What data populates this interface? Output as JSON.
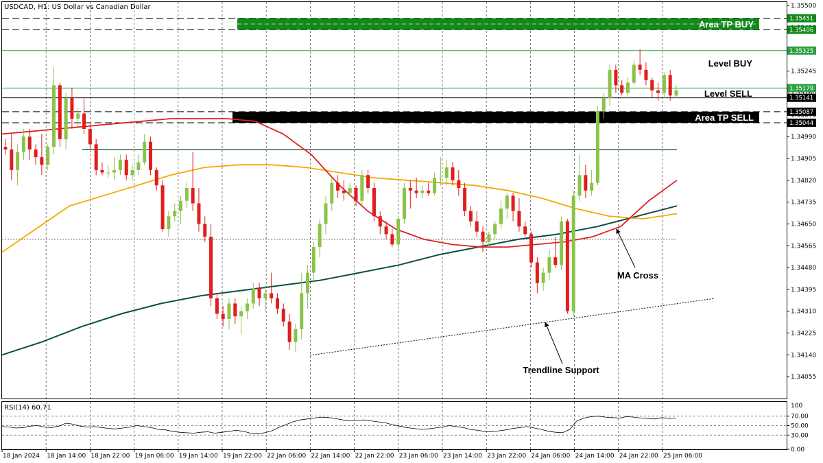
{
  "chart_title": "USDCAD, H1:  US Dollar vs Canadian Dollar",
  "rsi_label": "RSI(14) 60.71",
  "colors": {
    "bull": "#8bc34a",
    "bear": "#e11d1d",
    "ma_red": "#e0201e",
    "ma_orange": "#f5a800",
    "ma_dark": "#0b4f44",
    "green_zone": "#13891b",
    "level_green": "#2ea043",
    "grid": "#777777"
  },
  "chart_data": {
    "type": "candlestick",
    "symbol": "USDCAD",
    "timeframe": "H1",
    "ylim": [
      1.3397,
      1.35514
    ],
    "y_ticks": [
      "1.35500",
      "1.35415",
      "1.35330",
      "1.35245",
      "1.35160",
      "1.35075",
      "1.34990",
      "1.34905",
      "1.34820",
      "1.34735",
      "1.34650",
      "1.34565",
      "1.34480",
      "1.34395",
      "1.34310",
      "1.34225",
      "1.34140",
      "1.34055"
    ],
    "x_labels": [
      "18 Jan 2024",
      "18 Jan 14:00",
      "18 Jan 22:00",
      "19 Jan 06:00",
      "19 Jan 14:00",
      "19 Jan 22:00",
      "22 Jan 06:00",
      "22 Jan 14:00",
      "22 Jan 22:00",
      "23 Jan 06:00",
      "23 Jan 14:00",
      "23 Jan 22:00",
      "24 Jan 06:00",
      "24 Jan 14:00",
      "24 Jan 22:00",
      "25 Jan 06:00"
    ],
    "candles": [
      [
        1.3495,
        1.3498,
        1.3492,
        1.3494
      ],
      [
        1.3494,
        1.35,
        1.3482,
        1.3486
      ],
      [
        1.3486,
        1.3496,
        1.348,
        1.3493
      ],
      [
        1.3493,
        1.3502,
        1.349,
        1.3499
      ],
      [
        1.3499,
        1.3502,
        1.349,
        1.3494
      ],
      [
        1.3494,
        1.3496,
        1.3488,
        1.3491
      ],
      [
        1.3491,
        1.35,
        1.3484,
        1.3488
      ],
      [
        1.3488,
        1.3496,
        1.3486,
        1.3495
      ],
      [
        1.3495,
        1.3526,
        1.3492,
        1.3519
      ],
      [
        1.3519,
        1.352,
        1.3495,
        1.3498
      ],
      [
        1.3498,
        1.3516,
        1.3494,
        1.3514
      ],
      [
        1.3514,
        1.3518,
        1.3502,
        1.3506
      ],
      [
        1.3506,
        1.351,
        1.3503,
        1.3508
      ],
      [
        1.3508,
        1.3514,
        1.35,
        1.3502
      ],
      [
        1.3502,
        1.3504,
        1.3494,
        1.3496
      ],
      [
        1.3496,
        1.3498,
        1.3484,
        1.3486
      ],
      [
        1.3486,
        1.3489,
        1.3484,
        1.3485
      ],
      [
        1.3485,
        1.3488,
        1.3483,
        1.3485
      ],
      [
        1.3485,
        1.3491,
        1.3482,
        1.3486
      ],
      [
        1.3486,
        1.3492,
        1.3484,
        1.349
      ],
      [
        1.349,
        1.3492,
        1.3482,
        1.3484
      ],
      [
        1.3484,
        1.3488,
        1.3482,
        1.3486
      ],
      [
        1.3486,
        1.3492,
        1.3484,
        1.3489
      ],
      [
        1.3489,
        1.35,
        1.3488,
        1.3497
      ],
      [
        1.3497,
        1.3499,
        1.3484,
        1.3486
      ],
      [
        1.3486,
        1.3487,
        1.3478,
        1.348
      ],
      [
        1.348,
        1.3482,
        1.3462,
        1.3463
      ],
      [
        1.3463,
        1.347,
        1.346,
        1.3468
      ],
      [
        1.3468,
        1.3473,
        1.3466,
        1.347
      ],
      [
        1.347,
        1.3476,
        1.3465,
        1.3474
      ],
      [
        1.3474,
        1.3481,
        1.3471,
        1.3479
      ],
      [
        1.3479,
        1.3493,
        1.347,
        1.3473
      ],
      [
        1.3473,
        1.3479,
        1.3462,
        1.3465
      ],
      [
        1.3465,
        1.3468,
        1.3458,
        1.346
      ],
      [
        1.346,
        1.3465,
        1.3433,
        1.3436
      ],
      [
        1.3436,
        1.3438,
        1.3428,
        1.343
      ],
      [
        1.343,
        1.3433,
        1.3425,
        1.3428
      ],
      [
        1.3428,
        1.3436,
        1.3424,
        1.3434
      ],
      [
        1.3434,
        1.3436,
        1.3426,
        1.3429
      ],
      [
        1.3429,
        1.3433,
        1.3422,
        1.3431
      ],
      [
        1.3431,
        1.3436,
        1.3428,
        1.3434
      ],
      [
        1.3434,
        1.3442,
        1.3432,
        1.344
      ],
      [
        1.344,
        1.3442,
        1.3433,
        1.3436
      ],
      [
        1.3436,
        1.3441,
        1.3431,
        1.3438
      ],
      [
        1.3438,
        1.3446,
        1.3434,
        1.3436
      ],
      [
        1.3436,
        1.3438,
        1.343,
        1.3432
      ],
      [
        1.3432,
        1.3434,
        1.3425,
        1.3427
      ],
      [
        1.3427,
        1.343,
        1.3416,
        1.3419
      ],
      [
        1.3419,
        1.3426,
        1.3415,
        1.3424
      ],
      [
        1.3424,
        1.3446,
        1.342,
        1.3438
      ],
      [
        1.3438,
        1.3449,
        1.3432,
        1.3446
      ],
      [
        1.3446,
        1.3458,
        1.3442,
        1.3456
      ],
      [
        1.3456,
        1.3467,
        1.3452,
        1.3465
      ],
      [
        1.3465,
        1.3476,
        1.3461,
        1.3473
      ],
      [
        1.3473,
        1.3483,
        1.347,
        1.3481
      ],
      [
        1.3481,
        1.3484,
        1.3475,
        1.3478
      ],
      [
        1.3478,
        1.3482,
        1.3474,
        1.3477
      ],
      [
        1.3477,
        1.3481,
        1.3476,
        1.3479
      ],
      [
        1.3479,
        1.348,
        1.3472,
        1.3474
      ],
      [
        1.3474,
        1.3486,
        1.3472,
        1.3484
      ],
      [
        1.3484,
        1.3486,
        1.3477,
        1.3479
      ],
      [
        1.3479,
        1.3481,
        1.3466,
        1.3468
      ],
      [
        1.3468,
        1.347,
        1.3461,
        1.3464
      ],
      [
        1.3464,
        1.3466,
        1.3459,
        1.3461
      ],
      [
        1.3461,
        1.3463,
        1.3456,
        1.3457
      ],
      [
        1.3457,
        1.3468,
        1.3455,
        1.3467
      ],
      [
        1.3467,
        1.3481,
        1.3465,
        1.3479
      ],
      [
        1.3479,
        1.3482,
        1.3471,
        1.3478
      ],
      [
        1.3478,
        1.3483,
        1.3475,
        1.3477
      ],
      [
        1.3477,
        1.348,
        1.3475,
        1.3478
      ],
      [
        1.3478,
        1.3481,
        1.3476,
        1.3477
      ],
      [
        1.3477,
        1.3485,
        1.3476,
        1.3483
      ],
      [
        1.3483,
        1.3491,
        1.348,
        1.3483
      ],
      [
        1.3483,
        1.349,
        1.348,
        1.3487
      ],
      [
        1.3487,
        1.3489,
        1.348,
        1.3482
      ],
      [
        1.3482,
        1.3486,
        1.3476,
        1.3479
      ],
      [
        1.3479,
        1.3481,
        1.3468,
        1.347
      ],
      [
        1.347,
        1.3472,
        1.3464,
        1.3466
      ],
      [
        1.3466,
        1.347,
        1.346,
        1.3462
      ],
      [
        1.3462,
        1.3464,
        1.3454,
        1.3458
      ],
      [
        1.3458,
        1.3462,
        1.3456,
        1.3461
      ],
      [
        1.3461,
        1.3466,
        1.3459,
        1.3465
      ],
      [
        1.3465,
        1.3474,
        1.3463,
        1.3471
      ],
      [
        1.3471,
        1.3477,
        1.3467,
        1.3476
      ],
      [
        1.3476,
        1.3477,
        1.3466,
        1.347
      ],
      [
        1.347,
        1.3475,
        1.3462,
        1.3464
      ],
      [
        1.3464,
        1.3466,
        1.346,
        1.3461
      ],
      [
        1.3461,
        1.3462,
        1.3448,
        1.345
      ],
      [
        1.345,
        1.3452,
        1.3438,
        1.3442
      ],
      [
        1.3442,
        1.3448,
        1.3439,
        1.3446
      ],
      [
        1.3446,
        1.3455,
        1.3443,
        1.3452
      ],
      [
        1.3452,
        1.346,
        1.3448,
        1.3449
      ],
      [
        1.3449,
        1.3468,
        1.3447,
        1.3466
      ],
      [
        1.3466,
        1.3467,
        1.343,
        1.3431
      ],
      [
        1.3431,
        1.3478,
        1.3429,
        1.3476
      ],
      [
        1.3476,
        1.3492,
        1.3474,
        1.3484
      ],
      [
        1.3484,
        1.3488,
        1.3475,
        1.3478
      ],
      [
        1.3478,
        1.3486,
        1.3476,
        1.3481
      ],
      [
        1.3481,
        1.3511,
        1.348,
        1.3509
      ],
      [
        1.3509,
        1.3516,
        1.3506,
        1.3514
      ],
      [
        1.3514,
        1.3527,
        1.3511,
        1.3525
      ],
      [
        1.3525,
        1.3527,
        1.3516,
        1.3519
      ],
      [
        1.3519,
        1.3521,
        1.3515,
        1.3516
      ],
      [
        1.3516,
        1.3522,
        1.3514,
        1.352
      ],
      [
        1.352,
        1.3529,
        1.3519,
        1.3527
      ],
      [
        1.3527,
        1.3533,
        1.3523,
        1.3525
      ],
      [
        1.3525,
        1.3528,
        1.3519,
        1.3521
      ],
      [
        1.3521,
        1.3522,
        1.3514,
        1.3517
      ],
      [
        1.3517,
        1.352,
        1.3513,
        1.3516
      ],
      [
        1.3516,
        1.3524,
        1.3514,
        1.3523
      ],
      [
        1.3523,
        1.3525,
        1.3513,
        1.3515
      ],
      [
        1.3515,
        1.3519,
        1.3514,
        1.3517
      ]
    ],
    "ma_red": [
      1.35,
      1.3501,
      1.3502,
      1.3503,
      1.3504,
      1.3505,
      1.3506,
      1.3506,
      1.3506,
      1.3505,
      1.35,
      1.3492,
      1.348,
      1.347,
      1.3463,
      1.3459,
      1.3457,
      1.3456,
      1.3456,
      1.3457,
      1.3458,
      1.346,
      1.3464,
      1.3474,
      1.3482
    ],
    "ma_orange": [
      1.3454,
      1.3463,
      1.3472,
      1.3476,
      1.348,
      1.3484,
      1.3487,
      1.3488,
      1.3488,
      1.3487,
      1.3485,
      1.3483,
      1.3482,
      1.3481,
      1.348,
      1.3478,
      1.3475,
      1.3471,
      1.3468,
      1.3467,
      1.3469
    ],
    "ma_dark": [
      1.3414,
      1.3419,
      1.3425,
      1.343,
      1.3434,
      1.3437,
      1.3439,
      1.3441,
      1.3443,
      1.3446,
      1.3449,
      1.3453,
      1.3456,
      1.3459,
      1.3461,
      1.3464,
      1.3468,
      1.3472
    ],
    "levels": [
      {
        "label": "Area TP BUY",
        "price": 1.35451,
        "price2": 1.35406,
        "tag1": "1.35451",
        "tag2": "1.35406"
      },
      {
        "label": "Level BUY",
        "price": 1.35325,
        "tag": "1.35325"
      },
      {
        "label": "Level SELL",
        "price": 1.35179,
        "tag": "1.35179"
      },
      {
        "label": "",
        "price": 1.35141,
        "tag": "1.35141"
      },
      {
        "label": "Area TP SELL",
        "price": 1.35087,
        "price2": 1.35044,
        "tag1": "1.35087",
        "tag2": "1.35044"
      }
    ],
    "horizontal_line_price": 1.3494,
    "dotted_line_price": 1.3459,
    "annotations": [
      "MA Cross",
      "Trendline Support"
    ],
    "rsi": {
      "ylim": [
        0,
        100
      ],
      "ticks": [
        "70.00",
        "50.00",
        "30.00",
        "0.00"
      ],
      "values": [
        48,
        47,
        45,
        46,
        49,
        50,
        47,
        46,
        49,
        55,
        53,
        49,
        47,
        48,
        46,
        44,
        43,
        45,
        47,
        50,
        48,
        46,
        42,
        41,
        38,
        36,
        35,
        34,
        36,
        37,
        34,
        36,
        38,
        40,
        38,
        34,
        33,
        35,
        39,
        46,
        52,
        58,
        62,
        64,
        66,
        68,
        67,
        65,
        62,
        60,
        61,
        62,
        60,
        58,
        56,
        52,
        49,
        46,
        44,
        42,
        43,
        45,
        47,
        50,
        48,
        46,
        42,
        40,
        38,
        37,
        39,
        41,
        44,
        46,
        48,
        45,
        42,
        38,
        36,
        35,
        42,
        60,
        66,
        69,
        70,
        68,
        67,
        66,
        69,
        68,
        66,
        65,
        64,
        67,
        65,
        66
      ]
    }
  }
}
